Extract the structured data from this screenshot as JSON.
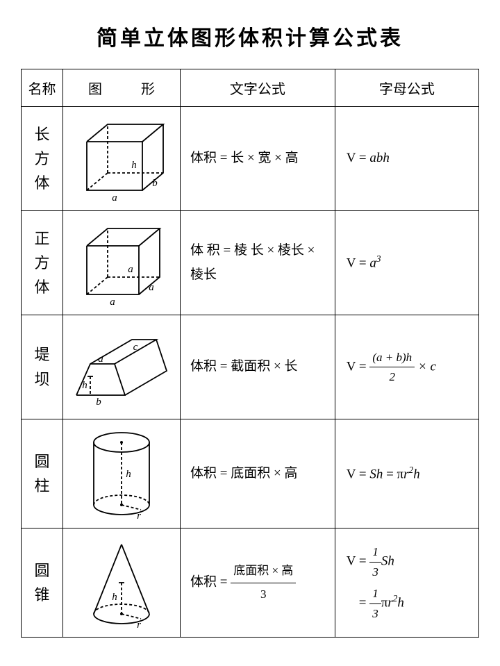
{
  "title": "简单立体图形体积计算公式表",
  "columns": [
    "名称",
    "图　形",
    "文字公式",
    "字母公式"
  ],
  "rows": [
    {
      "name": "长方体",
      "shape": "cuboid",
      "labels": {
        "a": "a",
        "b": "b",
        "h": "h"
      },
      "text_formula": "体积 = 长 × 宽 × 高",
      "letter_formula_html": "<span class='upright'>V = </span>abh"
    },
    {
      "name": "正方体",
      "shape": "cube",
      "labels": {
        "a": "a"
      },
      "text_formula": "体 积 = 棱 长 × 棱长 × 棱长",
      "letter_formula_html": "<span class='upright'>V = </span>a<sup>3</sup>"
    },
    {
      "name": "堤坝",
      "shape": "prism",
      "labels": {
        "a": "a",
        "b": "b",
        "c": "c",
        "h": "h"
      },
      "text_formula": "体积 = 截面积 × 长",
      "letter_formula_html": "<span class='upright'>V = </span><span class='frac'><span class='num'>(<i>a</i> + <i>b</i>)<i>h</i></span><span class='den'>2</span></span> × <i>c</i>"
    },
    {
      "name": "圆柱",
      "shape": "cylinder",
      "labels": {
        "h": "h",
        "r": "r"
      },
      "text_formula": "体积 = 底面积 × 高",
      "letter_formula_html": "<span class='upright'>V = </span>Sh<span class='upright'> = π</span>r<sup>2</sup>h"
    },
    {
      "name": "圆锥",
      "shape": "cone",
      "labels": {
        "h": "h",
        "r": "r"
      },
      "text_formula_html": "体积 = <span class='frac cn-frac'><span class='num'>底面积 × 高</span><span class='den'>3</span></span>",
      "letter_formula_html": "<span class='upright'>V = </span><span class='frac'><span class='num'>1</span><span class='den'>3</span></span><i>Sh</i><br><span style='display:inline-block;margin-left:18px;margin-top:6px;'><span class='upright'>= </span><span class='frac'><span class='num'>1</span><span class='den'>3</span></span><span class='upright'>π</span><i>r</i><sup>2</sup><i>h</i></span>"
    }
  ],
  "style": {
    "stroke": "#000",
    "stroke_width": 1.8,
    "dash": "4,3",
    "font": "italic 15px 'Times New Roman', serif"
  }
}
